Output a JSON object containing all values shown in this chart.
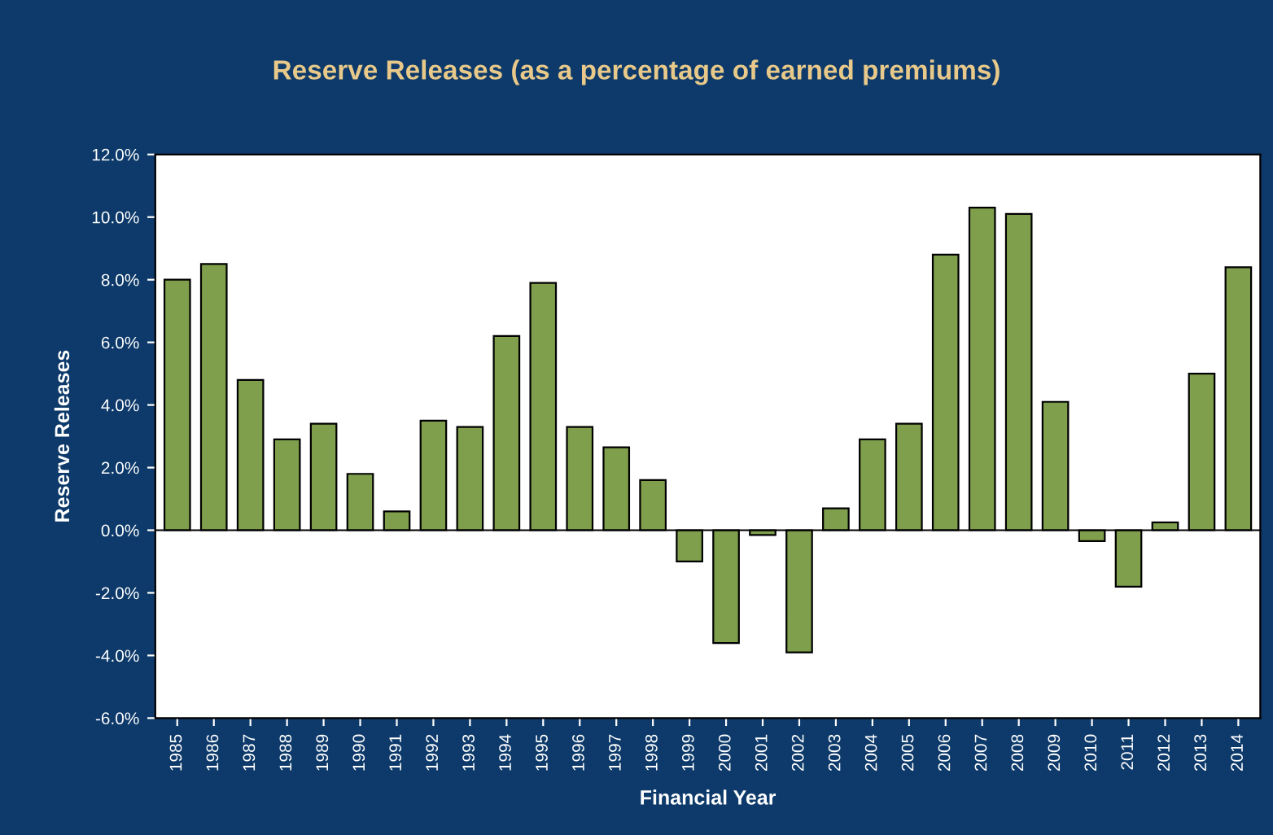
{
  "chart_data": {
    "type": "bar",
    "title": "Reserve Releases (as a percentage of earned premiums)",
    "xlabel": "Financial Year",
    "ylabel": "Reserve Releases",
    "categories": [
      "1985",
      "1986",
      "1987",
      "1988",
      "1989",
      "1990",
      "1991",
      "1992",
      "1993",
      "1994",
      "1995",
      "1996",
      "1997",
      "1998",
      "1999",
      "2000",
      "2001",
      "2002",
      "2003",
      "2004",
      "2005",
      "2006",
      "2007",
      "2008",
      "2009",
      "2010",
      "2011",
      "2012",
      "2013",
      "2014"
    ],
    "values": [
      8.0,
      8.5,
      4.8,
      2.9,
      3.4,
      1.8,
      0.6,
      3.5,
      3.3,
      6.2,
      7.9,
      3.3,
      2.65,
      1.6,
      -1.0,
      -3.6,
      -0.15,
      -3.9,
      0.7,
      2.9,
      3.4,
      8.8,
      10.3,
      10.1,
      4.1,
      -0.35,
      -1.8,
      0.25,
      5.0,
      8.4
    ],
    "color": "#7f9f4c",
    "ylim": [
      -6,
      12
    ],
    "yticks": [
      {
        "value": -6,
        "label": "-6.0%"
      },
      {
        "value": -4,
        "label": "-4.0%"
      },
      {
        "value": -2,
        "label": "-2.0%"
      },
      {
        "value": 0,
        "label": "0.0%"
      },
      {
        "value": 2,
        "label": "2.0%"
      },
      {
        "value": 4,
        "label": "4.0%"
      },
      {
        "value": 6,
        "label": "6.0%"
      },
      {
        "value": 8,
        "label": "8.0%"
      },
      {
        "value": 10,
        "label": "10.0%"
      },
      {
        "value": 12,
        "label": "12.0%"
      }
    ],
    "legend": false
  }
}
